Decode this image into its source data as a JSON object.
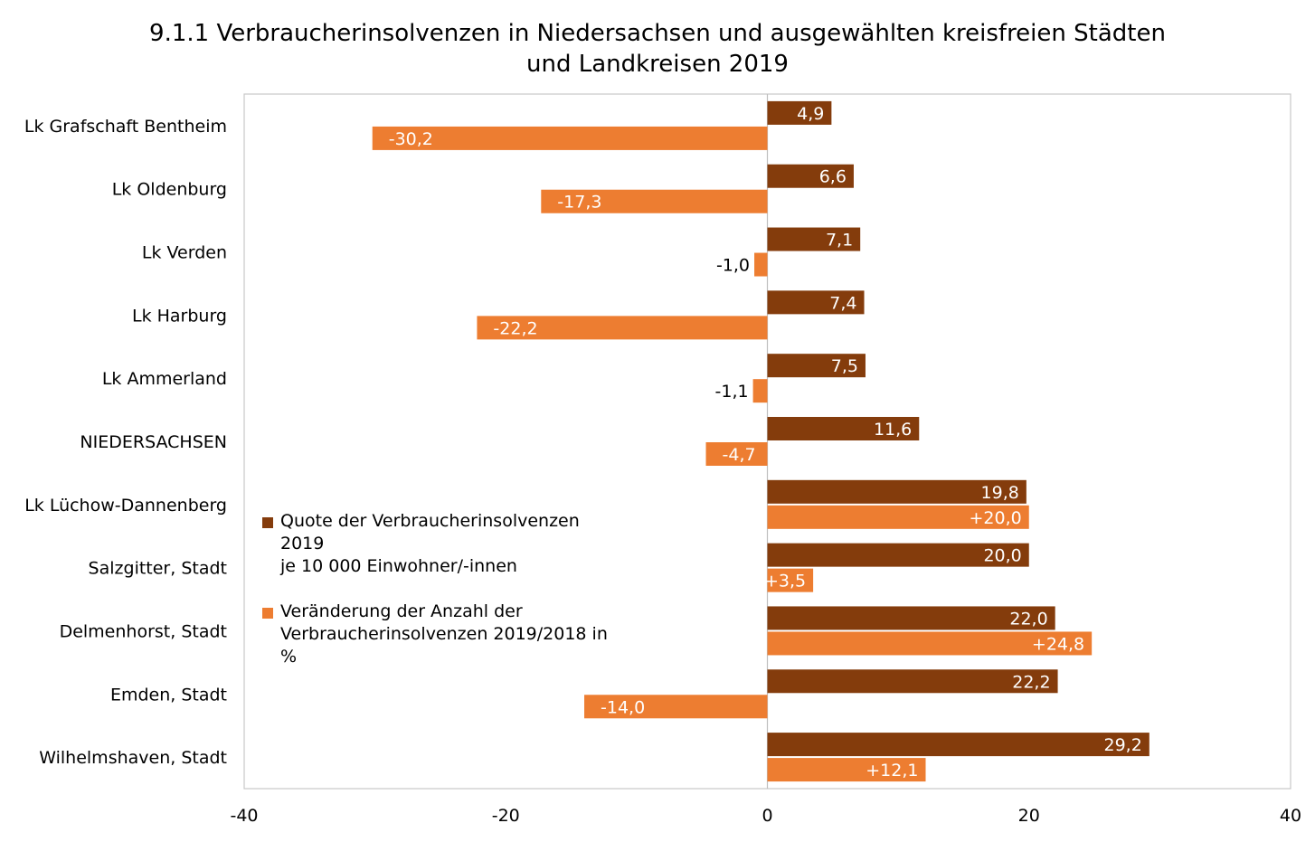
{
  "chart_data": {
    "type": "bar",
    "orientation": "horizontal",
    "title_line1": "9.1.1 Verbraucherinsolvenzen in Niedersachsen und ausgewählten kreisfreien Städten",
    "title_line2": "und Landkreisen 2019",
    "categories": [
      "Lk Grafschaft Bentheim",
      "Lk Oldenburg",
      "Lk Verden",
      "Lk Harburg",
      "Lk Ammerland",
      "NIEDERSACHSEN",
      "Lk Lüchow-Dannenberg",
      "Salzgitter, Stadt",
      "Delmenhorst, Stadt",
      "Emden, Stadt",
      "Wilhelmshaven, Stadt"
    ],
    "series": [
      {
        "name": "Quote der Verbraucherinsolvenzen 2019 je 10 000 Einwohner/-innen",
        "legend_lines": [
          "Quote der Verbraucherinsolvenzen 2019",
          "je 10 000 Einwohner/-innen"
        ],
        "color": "#843c0c",
        "values": [
          4.9,
          6.6,
          7.1,
          7.4,
          7.5,
          11.6,
          19.8,
          20.0,
          22.0,
          22.2,
          29.2
        ],
        "labels": [
          "4,9",
          "6,6",
          "7,1",
          "7,4",
          "7,5",
          "11,6",
          "19,8",
          "20,0",
          "22,0",
          "22,2",
          "29,2"
        ]
      },
      {
        "name": "Veränderung der Anzahl der Verbraucherinsolvenzen 2019/2018 in %",
        "legend_lines": [
          "Veränderung der Anzahl der",
          "Verbraucherinsolvenzen 2019/2018 in",
          "%"
        ],
        "color": "#ed7d31",
        "values": [
          -30.2,
          -17.3,
          -1.0,
          -22.2,
          -1.1,
          -4.7,
          20.0,
          3.5,
          24.8,
          -14.0,
          12.1
        ],
        "labels": [
          "-30,2",
          "-17,3",
          "-1,0",
          "-22,2",
          "-1,1",
          "-4,7",
          "+20,0",
          "+3,5",
          "+24,8",
          "-14,0",
          "+12,1"
        ]
      }
    ],
    "xlim": [
      -40,
      40
    ],
    "xticks": [
      -40,
      -20,
      0,
      20,
      40
    ],
    "xtick_labels": [
      "-40",
      "-20",
      "0",
      "20",
      "40"
    ],
    "grid": false,
    "legend_position": "left-center inside plot"
  }
}
